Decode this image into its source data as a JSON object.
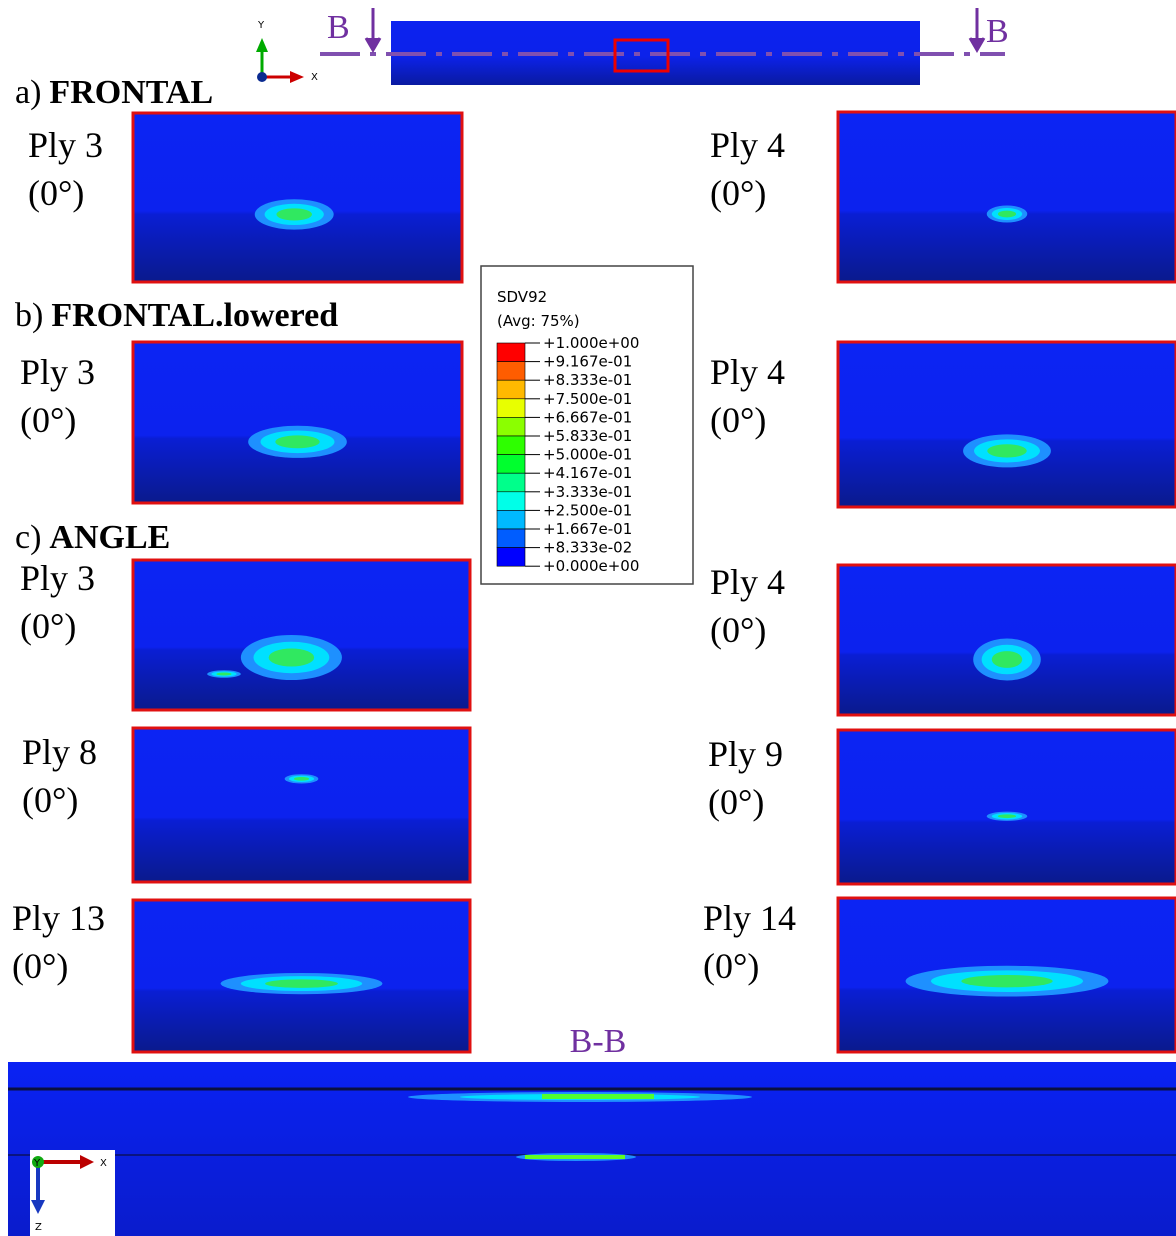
{
  "section_marker": {
    "left": "B",
    "right": "B",
    "title": "B-B"
  },
  "top_axes": {
    "y": "Y",
    "x": "X"
  },
  "sections": [
    {
      "letter": "a)",
      "name": "FRONTAL",
      "panels": [
        {
          "ply": "Ply 3",
          "angle": "(0°)"
        },
        {
          "ply": "Ply 4",
          "angle": "(0°)"
        }
      ]
    },
    {
      "letter": "b)",
      "name": "FRONTAL.lowered",
      "panels": [
        {
          "ply": "Ply 3",
          "angle": "(0°)"
        },
        {
          "ply": "Ply 4",
          "angle": "(0°)"
        }
      ]
    },
    {
      "letter": "c)",
      "name": "ANGLE",
      "panels": [
        {
          "ply": "Ply 3",
          "angle": "(0°)"
        },
        {
          "ply": "Ply 4",
          "angle": "(0°)"
        },
        {
          "ply": "Ply 8",
          "angle": "(0°)"
        },
        {
          "ply": "Ply 9",
          "angle": "(0°)"
        },
        {
          "ply": "Ply 13",
          "angle": "(0°)"
        },
        {
          "ply": "Ply 14",
          "angle": "(0°)"
        }
      ]
    }
  ],
  "legend": {
    "variable": "SDV92",
    "averaging": "(Avg: 75%)",
    "levels": [
      "+1.000e+00",
      "+9.167e-01",
      "+8.333e-01",
      "+7.500e-01",
      "+6.667e-01",
      "+5.833e-01",
      "+5.000e-01",
      "+4.167e-01",
      "+3.333e-01",
      "+2.500e-01",
      "+1.667e-01",
      "+8.333e-02",
      "+0.000e+00"
    ]
  },
  "bottom_axes": {
    "y": "Y",
    "x": "X",
    "z": "Z"
  }
}
